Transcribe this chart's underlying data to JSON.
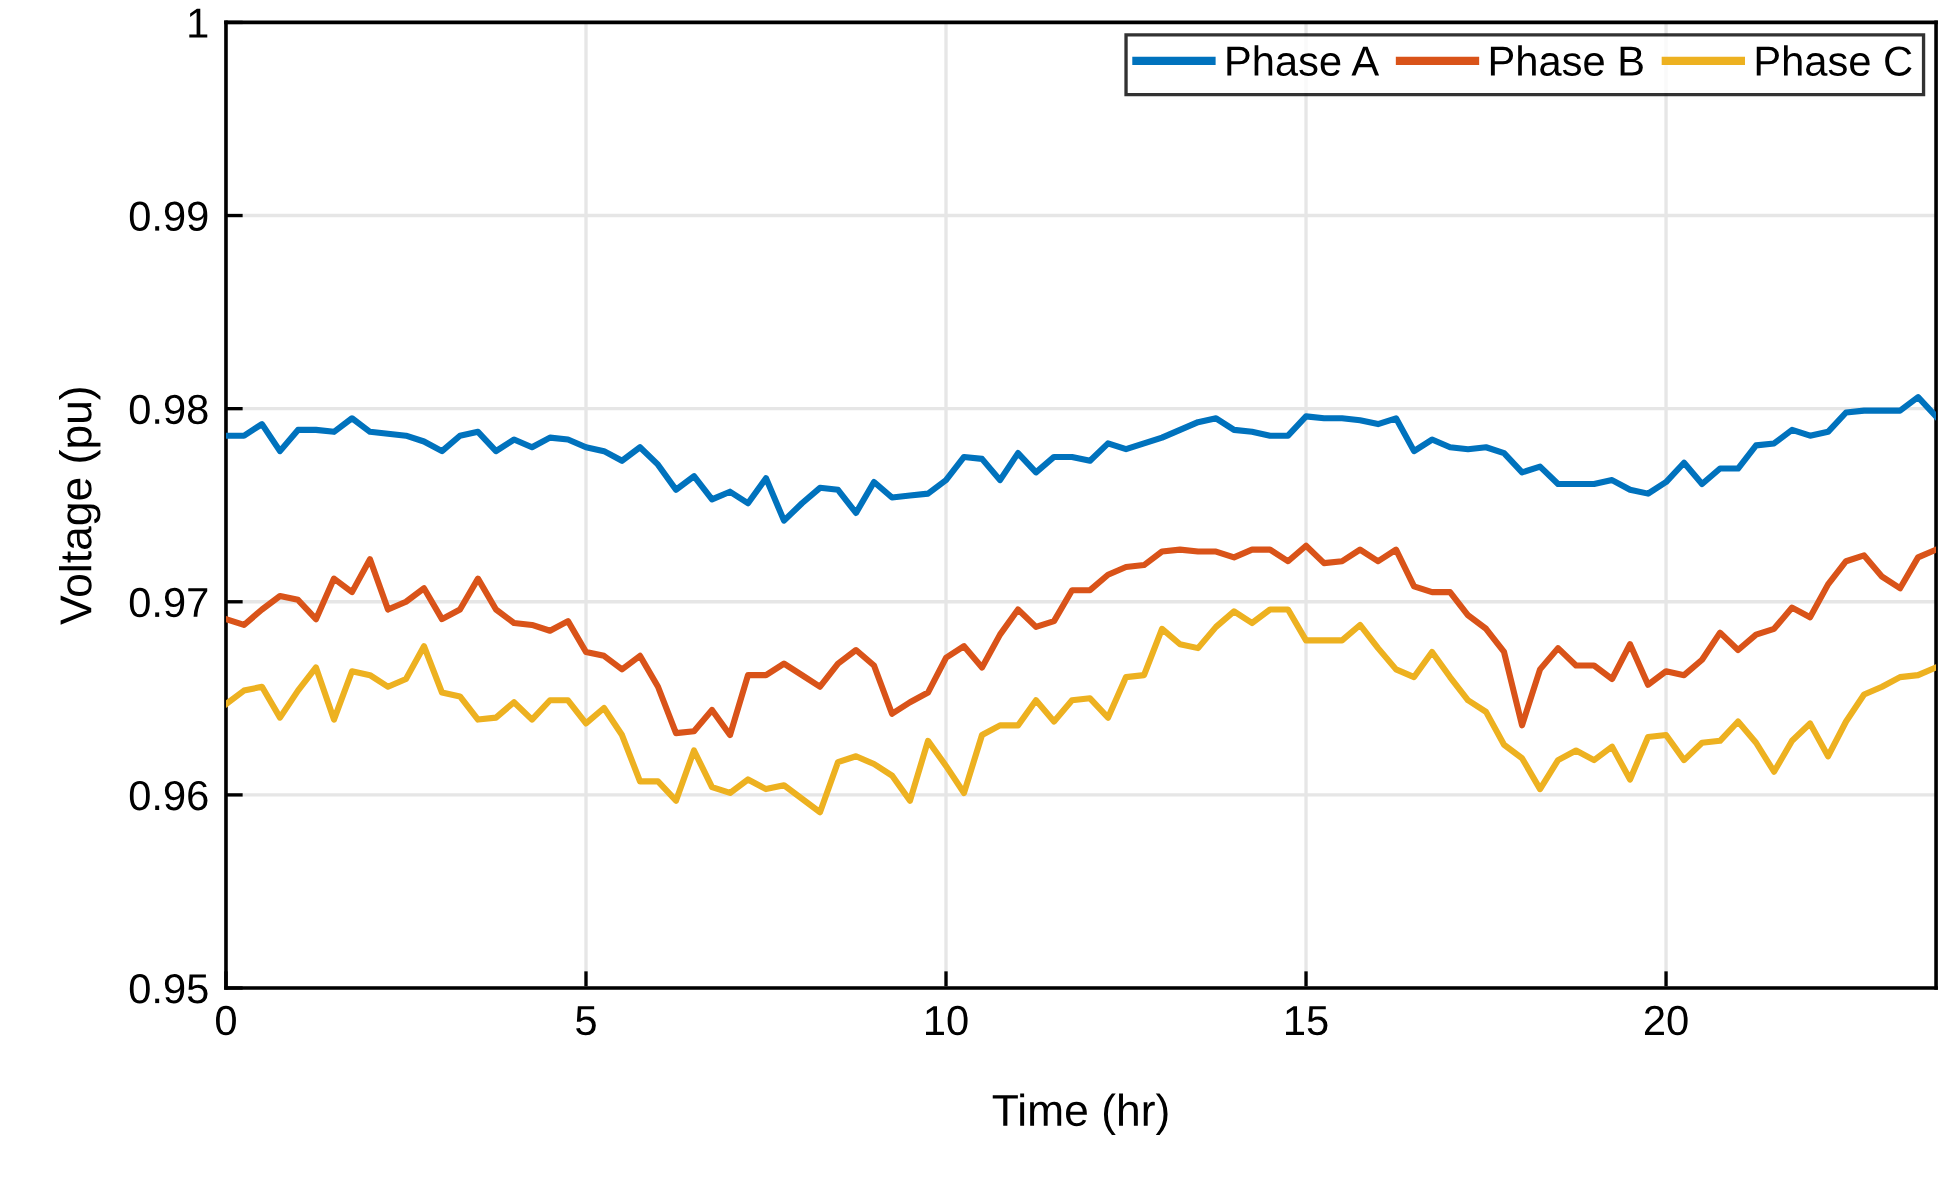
{
  "chart_data": {
    "type": "line",
    "xlabel": "Time (hr)",
    "ylabel": "Voltage (pu)",
    "x": [
      0,
      0.25,
      0.5,
      0.75,
      1,
      1.25,
      1.5,
      1.75,
      2,
      2.25,
      2.5,
      2.75,
      3,
      3.25,
      3.5,
      3.75,
      4,
      4.25,
      4.5,
      4.75,
      5,
      5.25,
      5.5,
      5.75,
      6,
      6.25,
      6.5,
      6.75,
      7,
      7.25,
      7.5,
      7.75,
      8,
      8.25,
      8.5,
      8.75,
      9,
      9.25,
      9.5,
      9.75,
      10,
      10.25,
      10.5,
      10.75,
      11,
      11.25,
      11.5,
      11.75,
      12,
      12.25,
      12.5,
      12.75,
      13,
      13.25,
      13.5,
      13.75,
      14,
      14.25,
      14.5,
      14.75,
      15,
      15.25,
      15.5,
      15.75,
      16,
      16.25,
      16.5,
      16.75,
      17,
      17.25,
      17.5,
      17.75,
      18,
      18.25,
      18.5,
      18.75,
      19,
      19.25,
      19.5,
      19.75,
      20,
      20.25,
      20.5,
      20.75,
      21,
      21.25,
      21.5,
      21.75,
      22,
      22.25,
      22.5,
      22.75,
      23,
      23.25,
      23.5,
      23.75
    ],
    "series": [
      {
        "name": "Phase A",
        "color": "#0072bd",
        "values": [
          0.9786,
          0.9786,
          0.9792,
          0.9778,
          0.9789,
          0.9789,
          0.9788,
          0.9795,
          0.9788,
          0.9787,
          0.9786,
          0.9783,
          0.9778,
          0.9786,
          0.9788,
          0.9778,
          0.9784,
          0.978,
          0.9785,
          0.9784,
          0.978,
          0.9778,
          0.9773,
          0.978,
          0.9771,
          0.9758,
          0.9765,
          0.9753,
          0.9757,
          0.9751,
          0.9764,
          0.9742,
          0.9751,
          0.9759,
          0.9758,
          0.9746,
          0.9762,
          0.9754,
          0.9755,
          0.9756,
          0.9763,
          0.9775,
          0.9774,
          0.9763,
          0.9777,
          0.9767,
          0.9775,
          0.9775,
          0.9773,
          0.9782,
          0.9779,
          0.9782,
          0.9785,
          0.9789,
          0.9793,
          0.9795,
          0.9789,
          0.9788,
          0.9786,
          0.9786,
          0.9796,
          0.9795,
          0.9795,
          0.9794,
          0.9792,
          0.9795,
          0.9778,
          0.9784,
          0.978,
          0.9779,
          0.978,
          0.9777,
          0.9767,
          0.977,
          0.9761,
          0.9761,
          0.9761,
          0.9763,
          0.9758,
          0.9756,
          0.9762,
          0.9772,
          0.9761,
          0.9769,
          0.9769,
          0.9781,
          0.9782,
          0.9789,
          0.9786,
          0.9788,
          0.9798,
          0.9799,
          0.9799,
          0.9799,
          0.9806,
          0.9796
        ]
      },
      {
        "name": "Phase B",
        "color": "#d95319",
        "values": [
          0.9691,
          0.9688,
          0.9696,
          0.9703,
          0.9701,
          0.9691,
          0.9712,
          0.9705,
          0.9722,
          0.9696,
          0.97,
          0.9707,
          0.9691,
          0.9696,
          0.9712,
          0.9696,
          0.9689,
          0.9688,
          0.9685,
          0.969,
          0.9674,
          0.9672,
          0.9665,
          0.9672,
          0.9656,
          0.9632,
          0.9633,
          0.9644,
          0.9631,
          0.9662,
          0.9662,
          0.9668,
          0.9662,
          0.9656,
          0.9668,
          0.9675,
          0.9667,
          0.9642,
          0.9648,
          0.9653,
          0.9671,
          0.9677,
          0.9666,
          0.9683,
          0.9696,
          0.9687,
          0.969,
          0.9706,
          0.9706,
          0.9714,
          0.9718,
          0.9719,
          0.9726,
          0.9727,
          0.9726,
          0.9726,
          0.9723,
          0.9727,
          0.9727,
          0.9721,
          0.9729,
          0.972,
          0.9721,
          0.9727,
          0.9721,
          0.9727,
          0.9708,
          0.9705,
          0.9705,
          0.9693,
          0.9686,
          0.9674,
          0.9636,
          0.9665,
          0.9676,
          0.9667,
          0.9667,
          0.966,
          0.9678,
          0.9657,
          0.9664,
          0.9662,
          0.967,
          0.9684,
          0.9675,
          0.9683,
          0.9686,
          0.9697,
          0.9692,
          0.9709,
          0.9721,
          0.9724,
          0.9713,
          0.9707,
          0.9723,
          0.9727
        ]
      },
      {
        "name": "Phase C",
        "color": "#edb120",
        "values": [
          0.9647,
          0.9654,
          0.9656,
          0.964,
          0.9654,
          0.9666,
          0.9639,
          0.9664,
          0.9662,
          0.9656,
          0.966,
          0.9677,
          0.9653,
          0.9651,
          0.9639,
          0.964,
          0.9648,
          0.9639,
          0.9649,
          0.9649,
          0.9637,
          0.9645,
          0.9631,
          0.9607,
          0.9607,
          0.9597,
          0.9623,
          0.9604,
          0.9601,
          0.9608,
          0.9603,
          0.9605,
          0.9598,
          0.9591,
          0.9617,
          0.962,
          0.9616,
          0.961,
          0.9597,
          0.9628,
          0.9615,
          0.9601,
          0.9631,
          0.9636,
          0.9636,
          0.9649,
          0.9638,
          0.9649,
          0.965,
          0.964,
          0.9661,
          0.9662,
          0.9686,
          0.9678,
          0.9676,
          0.9687,
          0.9695,
          0.9689,
          0.9696,
          0.9696,
          0.968,
          0.968,
          0.968,
          0.9688,
          0.9676,
          0.9665,
          0.9661,
          0.9674,
          0.9661,
          0.9649,
          0.9643,
          0.9626,
          0.9619,
          0.9603,
          0.9618,
          0.9623,
          0.9618,
          0.9625,
          0.9608,
          0.963,
          0.9631,
          0.9618,
          0.9627,
          0.9628,
          0.9638,
          0.9627,
          0.9612,
          0.9628,
          0.9637,
          0.962,
          0.9638,
          0.9652,
          0.9656,
          0.9661,
          0.9662,
          0.9666
        ]
      }
    ],
    "xlim": [
      0,
      23.75
    ],
    "xticks": [
      0,
      5,
      10,
      15,
      20
    ],
    "ylim": [
      0.95,
      1
    ],
    "yticks": [
      0.95,
      0.96,
      0.97,
      0.98,
      0.99,
      1
    ],
    "grid": true,
    "legend": "top right",
    "marker": "none",
    "line_style": "solid"
  }
}
